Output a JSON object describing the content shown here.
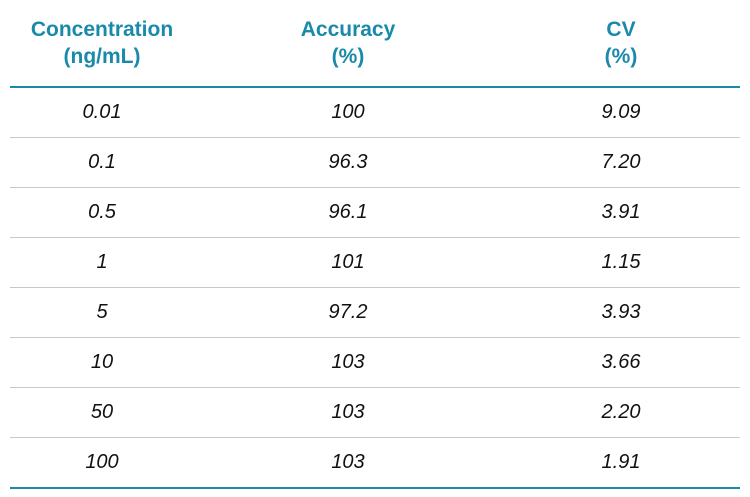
{
  "table": {
    "header": [
      [
        "Concentration",
        "(ng/mL)"
      ],
      [
        "Accuracy",
        "(%)"
      ],
      [
        "CV",
        "(%)"
      ]
    ],
    "rows": [
      [
        "0.01",
        "100",
        "9.09"
      ],
      [
        "0.1",
        "96.3",
        "7.20"
      ],
      [
        "0.5",
        "96.1",
        "3.91"
      ],
      [
        "1",
        "101",
        "1.15"
      ],
      [
        "5",
        "97.2",
        "3.93"
      ],
      [
        "10",
        "103",
        "3.66"
      ],
      [
        "50",
        "103",
        "2.20"
      ],
      [
        "100",
        "103",
        "1.91"
      ]
    ]
  }
}
